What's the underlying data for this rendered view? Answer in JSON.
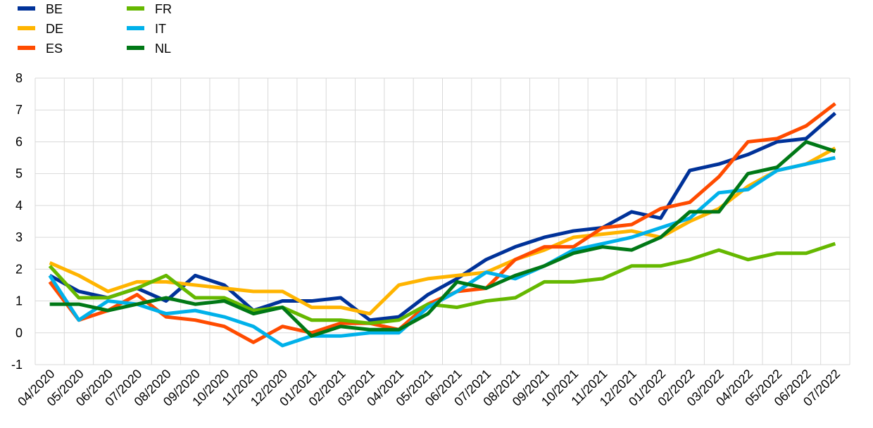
{
  "chart_data": {
    "type": "line",
    "categories": [
      "04/2020",
      "05/2020",
      "06/2020",
      "07/2020",
      "08/2020",
      "09/2020",
      "10/2020",
      "11/2020",
      "12/2020",
      "01/2021",
      "02/2021",
      "03/2021",
      "04/2021",
      "05/2021",
      "06/2021",
      "07/2021",
      "08/2021",
      "09/2021",
      "10/2021",
      "11/2021",
      "12/2021",
      "01/2022",
      "02/2022",
      "03/2022",
      "04/2022",
      "05/2022",
      "06/2022",
      "07/2022"
    ],
    "series": [
      {
        "name": "BE",
        "color": "#003299",
        "values": [
          1.8,
          1.3,
          1.1,
          1.4,
          1.0,
          1.8,
          1.5,
          0.7,
          1.0,
          1.0,
          1.1,
          0.4,
          0.5,
          1.2,
          1.7,
          2.3,
          2.7,
          3.0,
          3.2,
          3.3,
          3.8,
          3.6,
          5.1,
          5.3,
          5.6,
          6.0,
          6.1,
          6.9
        ]
      },
      {
        "name": "DE",
        "color": "#ffb400",
        "values": [
          2.2,
          1.8,
          1.3,
          1.6,
          1.6,
          1.5,
          1.4,
          1.3,
          1.3,
          0.8,
          0.8,
          0.6,
          1.5,
          1.7,
          1.8,
          1.9,
          2.3,
          2.6,
          3.0,
          3.1,
          3.2,
          3.0,
          3.5,
          3.9,
          4.6,
          5.1,
          5.3,
          5.8
        ]
      },
      {
        "name": "ES",
        "color": "#ff4b00",
        "values": [
          1.6,
          0.4,
          0.7,
          1.2,
          0.5,
          0.4,
          0.2,
          -0.3,
          0.2,
          0.0,
          0.3,
          0.3,
          0.1,
          0.9,
          1.3,
          1.4,
          2.3,
          2.7,
          2.7,
          3.3,
          3.4,
          3.9,
          4.1,
          4.9,
          6.0,
          6.1,
          6.5,
          7.2
        ]
      },
      {
        "name": "FR",
        "color": "#65b800",
        "values": [
          2.1,
          1.1,
          1.1,
          1.4,
          1.8,
          1.1,
          1.1,
          0.7,
          0.8,
          0.4,
          0.4,
          0.3,
          0.4,
          0.9,
          0.8,
          1.0,
          1.1,
          1.6,
          1.6,
          1.7,
          2.1,
          2.1,
          2.3,
          2.6,
          2.3,
          2.5,
          2.5,
          2.8
        ]
      },
      {
        "name": "IT",
        "color": "#00b1ea",
        "values": [
          1.8,
          0.4,
          1.0,
          0.9,
          0.6,
          0.7,
          0.5,
          0.2,
          -0.4,
          -0.1,
          -0.1,
          0.0,
          0.0,
          0.8,
          1.3,
          1.9,
          1.7,
          2.1,
          2.6,
          2.8,
          3.0,
          3.3,
          3.6,
          4.4,
          4.5,
          5.1,
          5.3,
          5.5
        ]
      },
      {
        "name": "NL",
        "color": "#007816",
        "values": [
          0.9,
          0.9,
          0.7,
          0.9,
          1.1,
          0.9,
          1.0,
          0.6,
          0.8,
          -0.1,
          0.2,
          0.1,
          0.1,
          0.6,
          1.6,
          1.4,
          1.8,
          2.1,
          2.5,
          2.7,
          2.6,
          3.0,
          3.8,
          3.8,
          5.0,
          5.2,
          6.0,
          5.7
        ]
      }
    ],
    "ylim": [
      -1,
      8
    ],
    "yticks": [
      -1,
      0,
      1,
      2,
      3,
      4,
      5,
      6,
      7,
      8
    ],
    "grid": true,
    "legend": "top-left"
  }
}
